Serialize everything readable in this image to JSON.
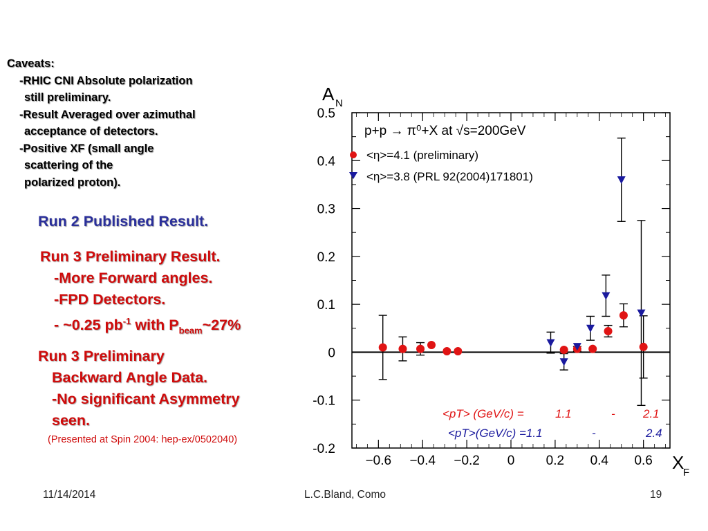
{
  "caveats": {
    "title": "Caveats:",
    "lines": [
      "-RHIC CNI Absolute polarization",
      "still preliminary.",
      "-Result Averaged over azimuthal",
      "acceptance of detectors.",
      "-Positive XF (small angle",
      "scattering of the",
      "polarized proton)."
    ]
  },
  "run2": {
    "text": "Run 2 Published Result."
  },
  "run3": {
    "title": "Run 3 Preliminary Result.",
    "item1": "-More Forward angles.",
    "item2": "-FPD Detectors.",
    "lumi_prefix": "- ~0.25 pb",
    "lumi_sup": "-1",
    "lumi_mid": " with P",
    "lumi_sub": "beam",
    "lumi_suffix": "~27%"
  },
  "run3_back": {
    "line1": "Run 3 Preliminary",
    "line2": "Backward Angle Data.",
    "line3": "-No significant Asymmetry",
    "line4": "seen."
  },
  "presented": "(Presented at Spin 2004: hep-ex/0502040)",
  "footer": {
    "date": "11/14/2014",
    "author": "L.C.Bland, Como",
    "page": "19"
  },
  "colors": {
    "red": "#e01414",
    "blue": "#1a1a9e",
    "title_blue": "#2a2f9a",
    "text_red": "#cf0b0b"
  },
  "chart_data": {
    "type": "scatter",
    "title": "p+p → π⁰+X at √s=200GeV",
    "ylabel_main": "A",
    "ylabel_sub": "N",
    "xlabel_main": "X",
    "xlabel_sub": "F",
    "xlim": [
      -0.72,
      0.72
    ],
    "ylim": [
      -0.2,
      0.5
    ],
    "xticks": [
      -0.6,
      -0.4,
      -0.2,
      0,
      0.2,
      0.4,
      0.6
    ],
    "xtick_labels": [
      "−0.6",
      "−0.4",
      "−0.2",
      "0",
      "0.2",
      "0.4",
      "0.6"
    ],
    "yticks": [
      0.5,
      0.4,
      0.3,
      0.2,
      0.1,
      0,
      -0.1,
      -0.2
    ],
    "ytick_labels": [
      "0.5",
      "0.4",
      "0.3",
      "0.2",
      "0.1",
      "0",
      "-0.1",
      "-0.2"
    ],
    "series": [
      {
        "name": "<η>=4.1 (preliminary)",
        "marker": "circle",
        "color": "#e01414",
        "points": [
          {
            "x": -0.58,
            "y": 0.01,
            "err": 0.067
          },
          {
            "x": -0.49,
            "y": 0.007,
            "err": 0.025
          },
          {
            "x": -0.41,
            "y": 0.007,
            "err": 0.013
          },
          {
            "x": -0.36,
            "y": 0.015,
            "err": 0.0
          },
          {
            "x": -0.29,
            "y": 0.002,
            "err": 0.0
          },
          {
            "x": -0.24,
            "y": 0.002,
            "err": 0.0
          },
          {
            "x": 0.24,
            "y": 0.005,
            "err": 0.0
          },
          {
            "x": 0.3,
            "y": 0.007,
            "err": 0.005
          },
          {
            "x": 0.37,
            "y": 0.007,
            "err": 0.0
          },
          {
            "x": 0.44,
            "y": 0.044,
            "err": 0.012
          },
          {
            "x": 0.51,
            "y": 0.077,
            "err": 0.024
          },
          {
            "x": 0.6,
            "y": 0.011,
            "err": 0.065
          }
        ]
      },
      {
        "name": "<η>=3.8 (PRL 92(2004)171801)",
        "marker": "triangle-down",
        "color": "#1a1a9e",
        "points": [
          {
            "x": 0.18,
            "y": 0.02,
            "err": 0.022
          },
          {
            "x": 0.24,
            "y": -0.02,
            "err": 0.017
          },
          {
            "x": 0.3,
            "y": 0.012,
            "err": 0.0
          },
          {
            "x": 0.36,
            "y": 0.05,
            "err": 0.025
          },
          {
            "x": 0.43,
            "y": 0.118,
            "err": 0.043
          },
          {
            "x": 0.5,
            "y": 0.36,
            "err": 0.087
          },
          {
            "x": 0.59,
            "y": 0.082,
            "err": 0.193
          }
        ]
      }
    ],
    "annotations": [
      {
        "label": "<pT> (GeV/c) =",
        "v1": "1.1",
        "dash": "-",
        "v2": "2.1",
        "color": "#e01414"
      },
      {
        "label": "<pT>(GeV/c) =1.1",
        "v1": "",
        "dash": "-",
        "v2": "2.4",
        "color": "#1a1a9e"
      }
    ]
  }
}
